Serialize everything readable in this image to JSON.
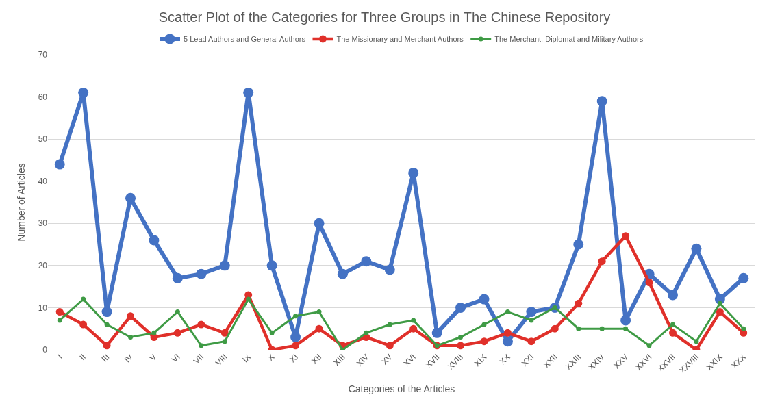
{
  "chart_data": {
    "type": "line",
    "title": "Scatter Plot of the Categories for Three Groups in The Chinese Repository",
    "xlabel": "Categories of the Articles",
    "ylabel": "Number of Articles",
    "categories": [
      "I",
      "II",
      "III",
      "IV",
      "V",
      "VI",
      "VII",
      "VIII",
      "IX",
      "X",
      "XI",
      "XII",
      "XIII",
      "XIV",
      "XV",
      "XVI",
      "XVII",
      "XVIII",
      "XIX",
      "XX",
      "XXI",
      "XXII",
      "XXIII",
      "XXIV",
      "XXV",
      "XXVI",
      "XXVII",
      "XXVIII",
      "XXIX",
      "XXX"
    ],
    "series": [
      {
        "name": "5 Lead Authors and General Authors",
        "color": "#4472c4",
        "values": [
          44,
          61,
          9,
          36,
          26,
          17,
          18,
          20,
          61,
          20,
          3,
          30,
          18,
          21,
          19,
          42,
          4,
          10,
          12,
          2,
          9,
          10,
          25,
          59,
          7,
          18,
          13,
          24,
          12,
          17
        ]
      },
      {
        "name": "The Missionary and Merchant Authors",
        "color": "#e0302a",
        "values": [
          9,
          6,
          1,
          8,
          3,
          4,
          6,
          4,
          13,
          0,
          1,
          5,
          1,
          3,
          1,
          5,
          1,
          1,
          2,
          4,
          2,
          5,
          11,
          21,
          27,
          16,
          4,
          0,
          9,
          4
        ]
      },
      {
        "name": "The Merchant, Diplomat and Military Authors",
        "color": "#3f9b45",
        "values": [
          7,
          12,
          6,
          3,
          4,
          9,
          1,
          2,
          12,
          4,
          8,
          9,
          0,
          4,
          6,
          7,
          1,
          3,
          6,
          9,
          7,
          10,
          5,
          5,
          5,
          1,
          6,
          2,
          11,
          5
        ]
      }
    ],
    "ylim": [
      0,
      70
    ],
    "yticks": [
      0,
      10,
      20,
      30,
      40,
      50,
      60,
      70
    ],
    "grid": "y",
    "legend": "top",
    "marker": "circle",
    "line_style": "solid"
  }
}
